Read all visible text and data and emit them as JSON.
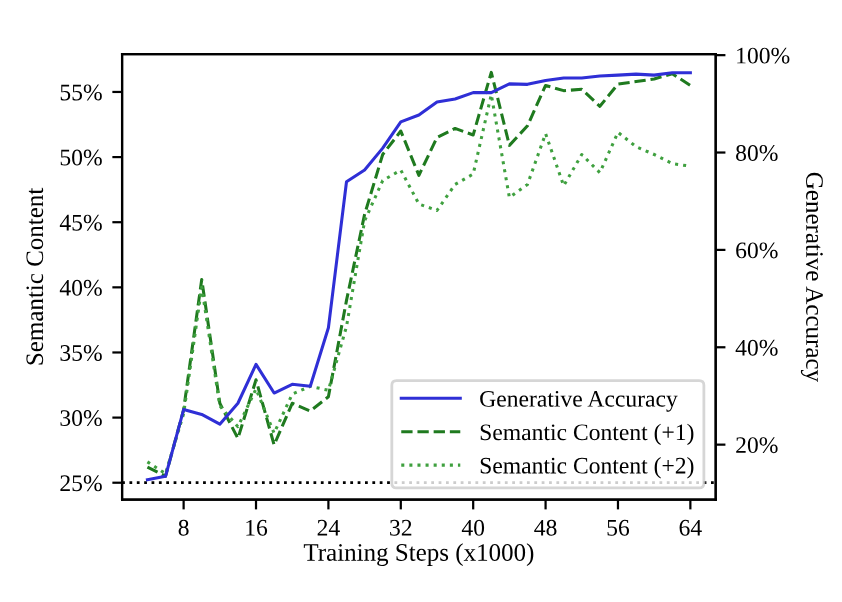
{
  "chart_data": {
    "type": "line",
    "xlabel": "Training Steps (x1000)",
    "ylabel": "Semantic Content",
    "y2label": "Generative Accuracy",
    "x": [
      4,
      6,
      8,
      10,
      12,
      14,
      16,
      18,
      20,
      22,
      24,
      26,
      28,
      30,
      32,
      34,
      36,
      38,
      40,
      42,
      44,
      46,
      48,
      50,
      52,
      54,
      56,
      58,
      60,
      62,
      64
    ],
    "series": [
      {
        "name": "Generative Accuracy",
        "color": "#2f2fd6",
        "axis": "y2",
        "line_style": "solid",
        "values": [
          12.8,
          13.5,
          27.2,
          26.2,
          24.2,
          28.5,
          36.5,
          30.6,
          32.4,
          32.0,
          44.0,
          74.0,
          76.4,
          80.9,
          86.3,
          87.7,
          90.4,
          91.0,
          92.3,
          92.3,
          94.1,
          94.0,
          94.8,
          95.3,
          95.3,
          95.7,
          95.9,
          96.1,
          95.9,
          96.4,
          96.4
        ]
      },
      {
        "name": "Semantic Content (+1)",
        "color": "#1f7a1f",
        "axis": "y",
        "line_style": "dashed",
        "values": [
          26.2,
          25.5,
          30.6,
          40.6,
          31.1,
          28.4,
          32.9,
          27.9,
          31.1,
          30.5,
          31.6,
          39.0,
          45.6,
          50.2,
          52.0,
          48.6,
          51.5,
          52.2,
          51.7,
          56.5,
          50.9,
          52.4,
          55.5,
          55.1,
          55.2,
          53.9,
          55.6,
          55.8,
          56.0,
          56.4,
          55.5
        ]
      },
      {
        "name": "Semantic Content (+2)",
        "color": "#3fa03f",
        "axis": "y",
        "line_style": "dotted",
        "values": [
          26.6,
          25.7,
          30.3,
          40.0,
          30.9,
          29.3,
          32.2,
          28.8,
          31.8,
          32.4,
          32.1,
          37.0,
          45.1,
          48.2,
          49.0,
          46.4,
          45.9,
          47.9,
          48.7,
          54.8,
          46.9,
          47.9,
          51.8,
          47.8,
          50.2,
          48.8,
          51.9,
          50.8,
          50.2,
          49.5,
          49.3
        ]
      }
    ],
    "xlim": [
      1.2,
      66.8
    ],
    "xticks": [
      8,
      16,
      24,
      32,
      40,
      48,
      56,
      64
    ],
    "ylim": [
      23.7,
      57.9
    ],
    "yticks": [
      {
        "value": 25,
        "label": "25%"
      },
      {
        "value": 30,
        "label": "30%"
      },
      {
        "value": 35,
        "label": "35%"
      },
      {
        "value": 40,
        "label": "40%"
      },
      {
        "value": 45,
        "label": "45%"
      },
      {
        "value": 50,
        "label": "50%"
      },
      {
        "value": 55,
        "label": "55%"
      }
    ],
    "y2lim": [
      8.7,
      100.2
    ],
    "y2ticks": [
      {
        "value": 20,
        "label": "20%"
      },
      {
        "value": 40,
        "label": "40%"
      },
      {
        "value": 60,
        "label": "60%"
      },
      {
        "value": 80,
        "label": "80%"
      },
      {
        "value": 100,
        "label": "100%"
      }
    ],
    "ref_lines": [
      {
        "axis": "y",
        "value": 25,
        "color": "#000000",
        "line_style": "dotted"
      }
    ],
    "legend": "bottom right",
    "grid": false,
    "marker": "none"
  }
}
